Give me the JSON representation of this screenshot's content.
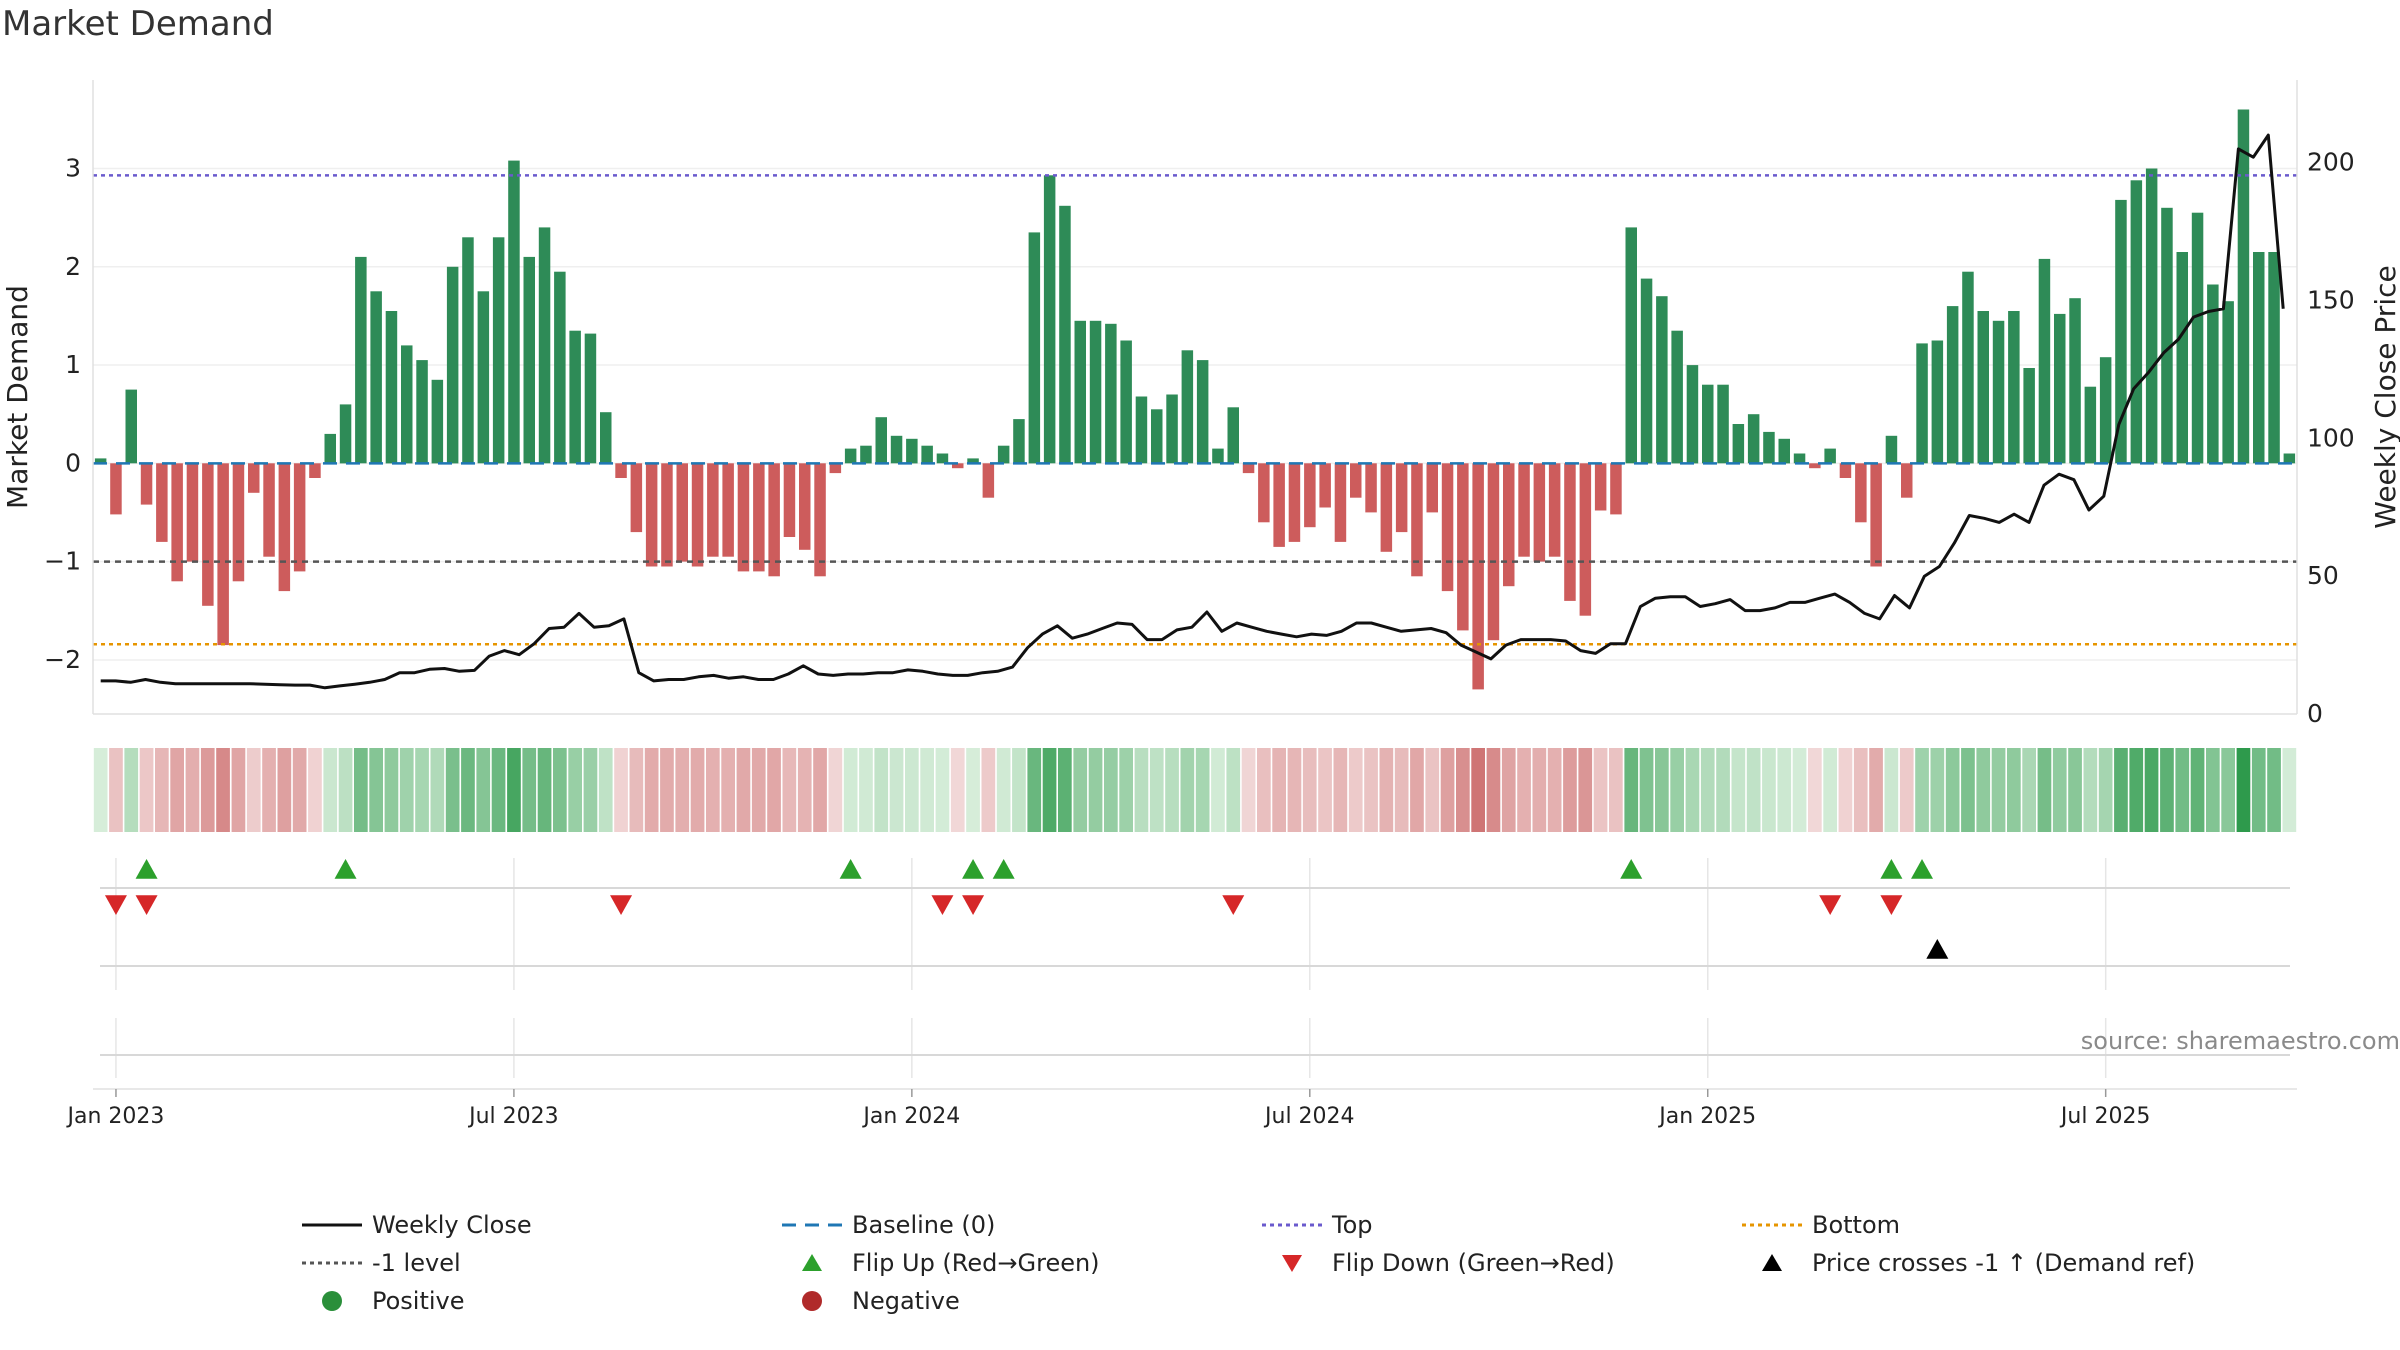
{
  "page": {
    "title": "Market Demand",
    "source": "source: sharemaestro.com"
  },
  "colors": {
    "positive_bar": "#2e8b57",
    "negative_bar": "#cd5c5c",
    "close_line": "#111111",
    "baseline": "#1f77b4",
    "top": "#6a5acd",
    "bottom": "#e69500",
    "minus1": "#555555",
    "flip_up": "#2ca02c",
    "flip_down": "#d62728",
    "cross": "#000000"
  },
  "chart_data": {
    "type": "bar",
    "title": "Market Demand",
    "ylabel": "Market Demand",
    "y2label": "Weekly Close Price",
    "ylim": [
      -2.55,
      3.9
    ],
    "y2lim": [
      0,
      230
    ],
    "yticks": [
      "3",
      "2",
      "1",
      "0",
      "−1",
      "−2"
    ],
    "yticks_values": [
      3,
      2,
      1,
      0,
      -1,
      -2
    ],
    "y2ticks": [
      "200",
      "150",
      "100",
      "50",
      "0"
    ],
    "y2ticks_values": [
      200,
      150,
      100,
      50,
      0
    ],
    "xticks": [
      "Jan 2023",
      "Jul 2023",
      "Jan 2024",
      "Jul 2024",
      "Jan 2025",
      "Jul 2025"
    ],
    "xticks_week": [
      1,
      27,
      53,
      79,
      105,
      131
    ],
    "levels": {
      "top": 2.93,
      "bottom": -1.84,
      "minus1": -1.0,
      "baseline": 0
    },
    "demand": [
      0.05,
      -0.52,
      0.75,
      -0.42,
      -0.8,
      -1.2,
      -1.0,
      -1.45,
      -1.85,
      -1.2,
      -0.3,
      -0.95,
      -1.3,
      -1.1,
      -0.15,
      0.3,
      0.6,
      2.1,
      1.75,
      1.55,
      1.2,
      1.05,
      0.85,
      2.0,
      2.3,
      1.75,
      2.3,
      3.08,
      2.1,
      2.4,
      1.95,
      1.35,
      1.32,
      0.52,
      -0.15,
      -0.7,
      -1.05,
      -1.05,
      -1.0,
      -1.05,
      -0.95,
      -0.95,
      -1.1,
      -1.1,
      -1.15,
      -0.75,
      -0.88,
      -1.15,
      -0.1,
      0.15,
      0.18,
      0.47,
      0.28,
      0.25,
      0.18,
      0.1,
      -0.05,
      0.05,
      -0.35,
      0.18,
      0.45,
      2.35,
      2.93,
      2.62,
      1.45,
      1.45,
      1.42,
      1.25,
      0.68,
      0.55,
      0.7,
      1.15,
      1.05,
      0.15,
      0.57,
      -0.1,
      -0.6,
      -0.85,
      -0.8,
      -0.65,
      -0.45,
      -0.8,
      -0.35,
      -0.5,
      -0.9,
      -0.7,
      -1.15,
      -0.5,
      -1.3,
      -1.7,
      -2.3,
      -1.8,
      -1.25,
      -0.95,
      -1.0,
      -0.95,
      -1.4,
      -1.55,
      -0.48,
      -0.52,
      2.4,
      1.88,
      1.7,
      1.35,
      1.0,
      0.8,
      0.8,
      0.4,
      0.5,
      0.32,
      0.25,
      0.1,
      -0.05,
      0.15,
      -0.15,
      -0.6,
      -1.05,
      0.28,
      -0.35,
      1.22,
      1.25,
      1.6,
      1.95,
      1.55,
      1.45,
      1.55,
      0.97,
      2.08,
      1.52,
      1.68,
      0.78,
      1.08,
      2.68,
      2.88,
      3.0,
      2.6,
      2.15,
      2.55,
      1.82,
      1.65,
      3.6,
      2.15,
      2.15,
      0.1
    ],
    "close_start_week": 0,
    "close_end_week": 142.6,
    "close": [
      12,
      12,
      11.5,
      12.5,
      11.5,
      11,
      11,
      11,
      11,
      11,
      11,
      10.8,
      10.6,
      10.5,
      10.5,
      9.5,
      10.2,
      10.8,
      11.5,
      12.5,
      15,
      15,
      16.2,
      16.5,
      15.5,
      15.8,
      21,
      23,
      21.5,
      25.5,
      31,
      31.5,
      36.5,
      31.5,
      32,
      34.5,
      15,
      12,
      12.5,
      12.5,
      13.5,
      14,
      13,
      13.5,
      12.5,
      12.5,
      14.5,
      17.5,
      14.5,
      14,
      14.5,
      14.5,
      15,
      15,
      16,
      15.5,
      14.5,
      14,
      14,
      15,
      15.5,
      17,
      24,
      29,
      32,
      27.5,
      29,
      31,
      33,
      32.5,
      27,
      27,
      30.5,
      31.5,
      37,
      30,
      33,
      31.5,
      30,
      29,
      28,
      29,
      28.5,
      30,
      33,
      33,
      31.5,
      30,
      30.5,
      31,
      29.5,
      25,
      22.5,
      20,
      25,
      27,
      27,
      27,
      26.5,
      23,
      22,
      25.5,
      25.5,
      39,
      42,
      42.5,
      42.5,
      39,
      40,
      41.5,
      37.5,
      37.5,
      38.5,
      40.5,
      40.5,
      42,
      43.5,
      40.5,
      36.5,
      34.5,
      43,
      38.5,
      50,
      53.5,
      62,
      72,
      71,
      69.5,
      72.5,
      69.5,
      83,
      87,
      85,
      74,
      79,
      105,
      118,
      124,
      131,
      136,
      144,
      146,
      147,
      205,
      202,
      210,
      147
    ]
  },
  "events": {
    "flip_up_weeks": [
      3,
      16,
      49,
      57,
      59,
      100,
      117,
      119
    ],
    "flip_down_weeks": [
      1,
      3,
      34,
      55,
      57,
      74,
      113,
      117
    ],
    "cross_weeks": [
      120
    ]
  },
  "legend": {
    "items": [
      {
        "key": "close",
        "label": "Weekly Close"
      },
      {
        "key": "baseline",
        "label": "Baseline (0)"
      },
      {
        "key": "top",
        "label": "Top"
      },
      {
        "key": "bottom",
        "label": "Bottom"
      },
      {
        "key": "minus1",
        "label": "-1 level"
      },
      {
        "key": "flip_up",
        "label": "Flip Up (Red→Green)"
      },
      {
        "key": "flip_down",
        "label": "Flip Down (Green→Red)"
      },
      {
        "key": "cross",
        "label": "Price crosses -1 ↑ (Demand ref)"
      },
      {
        "key": "positive",
        "label": "Positive"
      },
      {
        "key": "negative",
        "label": "Negative"
      }
    ]
  }
}
